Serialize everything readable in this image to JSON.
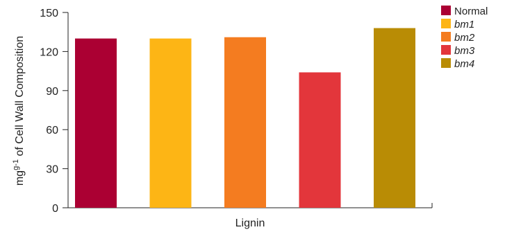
{
  "chart_data": {
    "type": "bar",
    "categories": [
      "Normal",
      "bm1",
      "bm2",
      "bm3",
      "bm4"
    ],
    "values": [
      130,
      130,
      131,
      104,
      138
    ],
    "colors": [
      "#ab0033",
      "#fdb515",
      "#f47c20",
      "#e3363b",
      "#b98c05"
    ],
    "italic": [
      false,
      true,
      true,
      true,
      true
    ],
    "xlabel": "Lignin",
    "ylabel_main": "mg",
    "ylabel_sup": "g-1",
    "ylabel_rest": " of Cell Wall Composition",
    "ylim": [
      0,
      150
    ],
    "yticks": [
      "0",
      "30",
      "60",
      "90",
      "120",
      "150"
    ],
    "grid": false,
    "legend_position": "top-right"
  }
}
